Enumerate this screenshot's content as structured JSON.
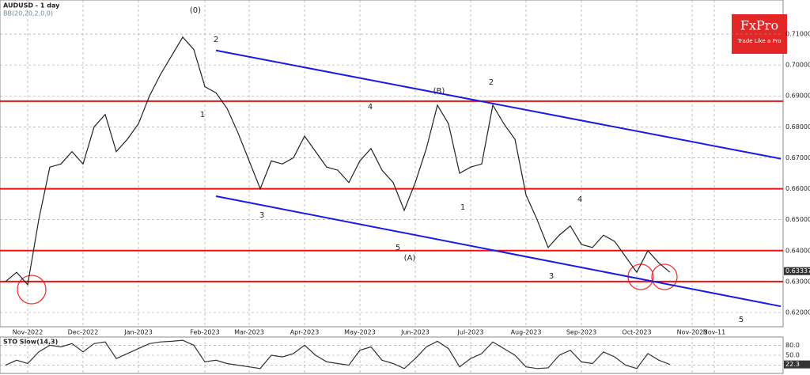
{
  "chart_data": [
    {
      "type": "line",
      "title": "AUDUSD - 1 day",
      "subtitle": "BB(20,20,2,0,0)",
      "logo": {
        "brand": "FxPro",
        "tagline": "Trade Like a Pro"
      },
      "last_price": {
        "value": 0.63337,
        "label": "0.63337"
      },
      "categories": [
        null,
        null,
        "Nov-2022",
        null,
        null,
        null,
        null,
        "Dec-2022",
        null,
        null,
        null,
        null,
        "Jan-2023",
        null,
        null,
        null,
        null,
        null,
        "Feb-2023",
        null,
        null,
        null,
        "Mar-2023",
        null,
        null,
        null,
        null,
        "Apr-2023",
        null,
        null,
        null,
        null,
        "May-2023",
        null,
        null,
        null,
        null,
        "Jun-2023",
        null,
        null,
        null,
        null,
        "Jul-2023",
        null,
        null,
        null,
        null,
        "Aug-2023",
        null,
        null,
        null,
        null,
        "Sep-2023",
        null,
        null,
        null,
        null,
        "Oct-2023",
        null,
        null,
        null,
        null,
        "Nov-2023",
        null,
        "Nov-11",
        null,
        null,
        null,
        null,
        null,
        null
      ],
      "series": [
        {
          "name": "AUDUSD",
          "color": "#222222",
          "values": [
            0.63,
            0.633,
            0.629,
            0.65,
            0.667,
            0.668,
            0.672,
            0.668,
            0.68,
            0.684,
            0.672,
            0.676,
            0.681,
            0.69,
            0.697,
            0.703,
            0.709,
            0.705,
            0.693,
            0.691,
            0.686,
            0.678,
            0.669,
            0.66,
            0.669,
            0.668,
            0.67,
            0.677,
            0.672,
            0.667,
            0.666,
            0.662,
            0.669,
            0.673,
            0.666,
            0.662,
            0.653,
            0.662,
            0.673,
            0.687,
            0.681,
            0.665,
            0.667,
            0.668,
            0.687,
            0.681,
            0.676,
            0.658,
            0.65,
            0.641,
            0.645,
            0.648,
            0.642,
            0.641,
            0.645,
            0.643,
            0.638,
            0.633,
            0.64,
            0.636,
            0.633,
            null,
            null,
            null,
            null,
            null,
            null,
            null,
            null,
            null,
            null
          ]
        }
      ],
      "levels": {
        "color": "#ee1111",
        "values": [
          0.6883,
          0.66,
          0.64,
          0.63
        ]
      },
      "trendlines": {
        "color": "#1a1ae6",
        "lines": [
          {
            "x": [
              19,
              70
            ],
            "values": [
              0.7047,
              0.6697
            ]
          },
          {
            "x": [
              19,
              70
            ],
            "values": [
              0.6576,
              0.622
            ]
          }
        ]
      },
      "annotations": [
        "(0)",
        "2",
        "1",
        "3",
        "4",
        "5",
        "(A)",
        "(B)",
        "2",
        "1",
        "3",
        "4",
        "5"
      ],
      "ylim": [
        0.6154,
        0.721
      ],
      "yticks": [
        {
          "value": 0.62,
          "label": "0.62000"
        },
        {
          "value": 0.63,
          "label": "0.63000"
        },
        {
          "value": 0.64,
          "label": "0.64000"
        },
        {
          "value": 0.65,
          "label": "0.65000"
        },
        {
          "value": 0.66,
          "label": "0.66000"
        },
        {
          "value": 0.67,
          "label": "0.67000"
        },
        {
          "value": 0.68,
          "label": "0.68000"
        },
        {
          "value": 0.69,
          "label": "0.69000"
        },
        {
          "value": 0.7,
          "label": "0.70000"
        },
        {
          "value": 0.71,
          "label": "0.71000"
        }
      ],
      "grid": true
    },
    {
      "type": "line",
      "title": "STO Slow(14,3)",
      "series": [
        {
          "name": "STO",
          "color": "#333333",
          "values": [
            20,
            35,
            25,
            60,
            80,
            75,
            85,
            60,
            85,
            90,
            40,
            55,
            70,
            85,
            90,
            92,
            95,
            80,
            30,
            35,
            25,
            20,
            15,
            10,
            50,
            45,
            55,
            80,
            50,
            30,
            25,
            20,
            65,
            75,
            35,
            25,
            10,
            40,
            75,
            92,
            70,
            15,
            40,
            55,
            90,
            70,
            50,
            15,
            10,
            12,
            50,
            65,
            30,
            25,
            60,
            45,
            20,
            10,
            55,
            35,
            22.3,
            null,
            null,
            null,
            null,
            null,
            null,
            null,
            null,
            null,
            null
          ]
        }
      ],
      "ylim": [
        0,
        100
      ],
      "yticks": [
        {
          "value": 80,
          "label": "80.0"
        },
        {
          "value": 50,
          "label": "50.0"
        },
        {
          "value": 20,
          "label": "20.0"
        }
      ],
      "last_value": {
        "value": 22.3,
        "label": "22.3"
      }
    }
  ]
}
